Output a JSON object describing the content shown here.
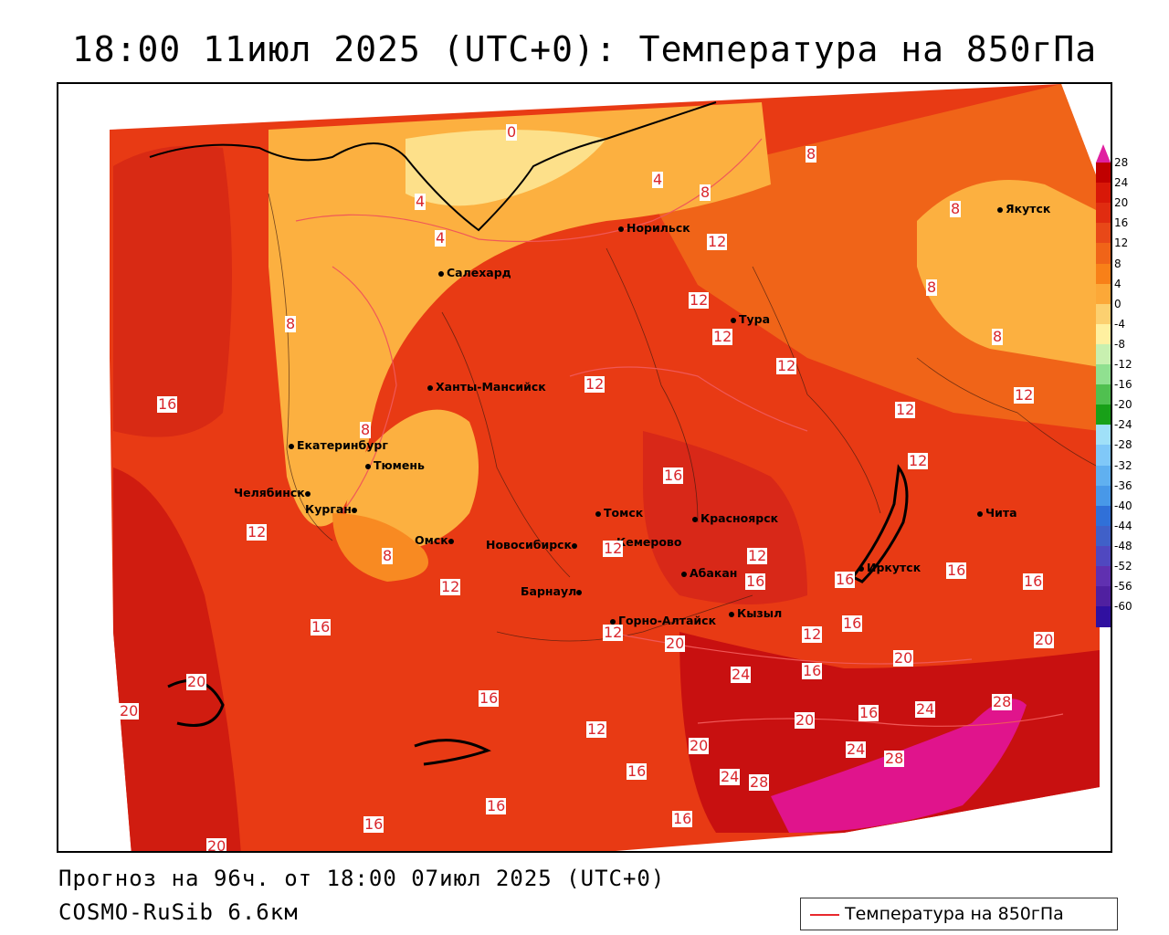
{
  "title": "18:00 11июл 2025 (UTC+0): Температура на 850гПа",
  "footer": {
    "forecast": "Прогноз на 96ч. от 18:00 07июл 2025 (UTC+0)",
    "model": "COSMO-RuSib 6.6км"
  },
  "legend": {
    "label": "Температура на 850гПа",
    "line_color": "#e8282d"
  },
  "colorbar": {
    "ticks": [
      "28",
      "24",
      "20",
      "16",
      "12",
      "8",
      "4",
      "0",
      "-4",
      "-8",
      "-12",
      "-16",
      "-20",
      "-24",
      "-28",
      "-32",
      "-36",
      "-40",
      "-44",
      "-48",
      "-52",
      "-56",
      "-60"
    ],
    "colors": [
      "#c00000",
      "#d81808",
      "#e02c10",
      "#e84818",
      "#f06418",
      "#f88018",
      "#fca838",
      "#fcd070",
      "#fff0a0",
      "#c8f0b0",
      "#90e090",
      "#50c050",
      "#18a018",
      "#a0e0f8",
      "#80c8f8",
      "#60b0f0",
      "#4898e8",
      "#3070d8",
      "#4060c8",
      "#5048c0",
      "#6030b0",
      "#5020a0",
      "#3010a0"
    ],
    "top_color": "#e020a0"
  },
  "cities": [
    {
      "name": "Норильск"
    },
    {
      "name": "Якутск"
    },
    {
      "name": "Салехард"
    },
    {
      "name": "Тура"
    },
    {
      "name": "Ханты-Мансийск"
    },
    {
      "name": "Екатеринбург"
    },
    {
      "name": "Тюмень"
    },
    {
      "name": "Челябинск"
    },
    {
      "name": "Курган"
    },
    {
      "name": "Омск"
    },
    {
      "name": "Томск"
    },
    {
      "name": "Красноярск"
    },
    {
      "name": "Новосибирск"
    },
    {
      "name": "Кемерово"
    },
    {
      "name": "Абакан"
    },
    {
      "name": "Барнаул"
    },
    {
      "name": "Иркутск"
    },
    {
      "name": "Чита"
    },
    {
      "name": "Горно-Алтайск"
    },
    {
      "name": "Кызыл"
    }
  ],
  "contour_labels": [
    "0",
    "4",
    "4",
    "4",
    "8",
    "8",
    "8",
    "8",
    "8",
    "8",
    "8",
    "8",
    "12",
    "12",
    "12",
    "12",
    "12",
    "12",
    "12",
    "12",
    "12",
    "12",
    "12",
    "12",
    "12",
    "12",
    "12",
    "16",
    "16",
    "16",
    "16",
    "16",
    "16",
    "16",
    "16",
    "16",
    "16",
    "16",
    "16",
    "16",
    "16",
    "16",
    "20",
    "20",
    "20",
    "20",
    "20",
    "20",
    "20",
    "20",
    "24",
    "24",
    "24",
    "24",
    "28",
    "28",
    "28"
  ]
}
